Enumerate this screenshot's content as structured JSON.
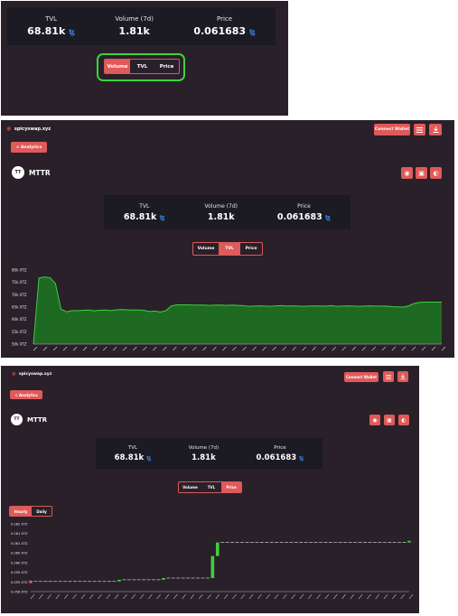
{
  "stats": {
    "tvl_label": "TVL",
    "tvl_value": "68.81k",
    "volume_label": "Volume (7d)",
    "volume_value": "1.81k",
    "price_label": "Price",
    "price_value": "0.061683",
    "xtz_symbol": "ꜩ"
  },
  "tabs": {
    "volume": "Volume",
    "tvl": "TVL",
    "price": "Price"
  },
  "panels": [
    {
      "active_tab": "volume",
      "highlight_color": "#39d43c"
    },
    {
      "active_tab": "tvl"
    },
    {
      "active_tab": "price"
    }
  ],
  "header": {
    "site_name": "spicyswap.xyz",
    "connect_wallet": "Connect Wallet",
    "menu_icon": "hamburger-icon",
    "download_icon": "download-icon"
  },
  "nav": {
    "back_label": "< Analytics"
  },
  "token": {
    "avatar_text": "TT",
    "name": "MTTR",
    "action_icons": [
      "telegram-icon",
      "twitter-icon",
      "discord-icon"
    ]
  },
  "price_period": {
    "hourly": "Hourly",
    "daily": "Daily",
    "active": "hourly"
  },
  "colors": {
    "accent": "#e05a5a",
    "panel_bg": "#2a2029",
    "stat_bg": "#1c1a22",
    "series_green": "#3ccf3f",
    "xtz_blue": "#3a7bd5"
  },
  "chart_data": [
    {
      "type": "area",
      "ylim": [
        50,
        80
      ],
      "y_ticks": [
        "80k XTZ",
        "75k XTZ",
        "70k XTZ",
        "65k XTZ",
        "60k XTZ",
        "55k XTZ",
        "50k XTZ"
      ],
      "grid": false,
      "series": [
        {
          "values": [
            50,
            76.8,
            77.2,
            76.9,
            74.5,
            64.2,
            63.1,
            63.6,
            63.6,
            63.7,
            63.8,
            63.5,
            63.7,
            63.8,
            63.6,
            63.9,
            64.0,
            63.9,
            63.8,
            63.8,
            63.7,
            63.2,
            63.4,
            63.0,
            63.6,
            65.5,
            65.9,
            65.9,
            65.9,
            65.8,
            65.8,
            65.8,
            65.7,
            65.8,
            65.8,
            65.7,
            65.8,
            65.7,
            65.6,
            65.3,
            65.4,
            65.5,
            65.4,
            65.3,
            65.5,
            65.6,
            65.4,
            65.5,
            65.4,
            65.3,
            65.4,
            65.5,
            65.4,
            65.4,
            65.6,
            65.3,
            65.4,
            65.5,
            65.4,
            65.3,
            65.4,
            65.5,
            65.4,
            65.4,
            65.4,
            65.2,
            65.1,
            65.0,
            65.5,
            66.5,
            66.9,
            67.0,
            67.0,
            67.0,
            67.0
          ]
        }
      ]
    },
    {
      "type": "bar",
      "chart_style": "candlestick-steps",
      "ylim": [
        0.058,
        0.062
      ],
      "y_ticks": [
        "0.062 XTZ",
        "0.061 XTZ",
        "0.061 XTZ",
        "0.060 XTZ",
        "0.060 XTZ",
        "0.059 XTZ",
        "0.059 XTZ",
        "0.058 XTZ"
      ],
      "series": [
        {
          "values": [
            0.0586,
            0.0586,
            0.0586,
            0.0586,
            0.0586,
            0.0586,
            0.0586,
            0.0586,
            0.0586,
            0.0586,
            0.0586,
            0.0586,
            0.0586,
            0.0586,
            0.0586,
            0.0586,
            0.0586,
            0.0586,
            0.0587,
            0.0587,
            0.0587,
            0.0587,
            0.0587,
            0.0587,
            0.0587,
            0.0587,
            0.0587,
            0.0588,
            0.0588,
            0.0588,
            0.0588,
            0.0588,
            0.0588,
            0.0588,
            0.0588,
            0.0588,
            0.0588,
            0.0601,
            0.0609,
            0.0609,
            0.0609,
            0.0609,
            0.0609,
            0.0609,
            0.0609,
            0.0609,
            0.0609,
            0.0609,
            0.0609,
            0.0609,
            0.0609,
            0.0609,
            0.0609,
            0.0609,
            0.0609,
            0.0609,
            0.0609,
            0.0609,
            0.0609,
            0.0609,
            0.0609,
            0.0609,
            0.0609,
            0.0609,
            0.0609,
            0.0609,
            0.0609,
            0.0609,
            0.0609,
            0.0609,
            0.0609,
            0.0609,
            0.0609,
            0.0609,
            0.0609,
            0.0609,
            0.0609,
            0.061
          ]
        }
      ]
    }
  ]
}
